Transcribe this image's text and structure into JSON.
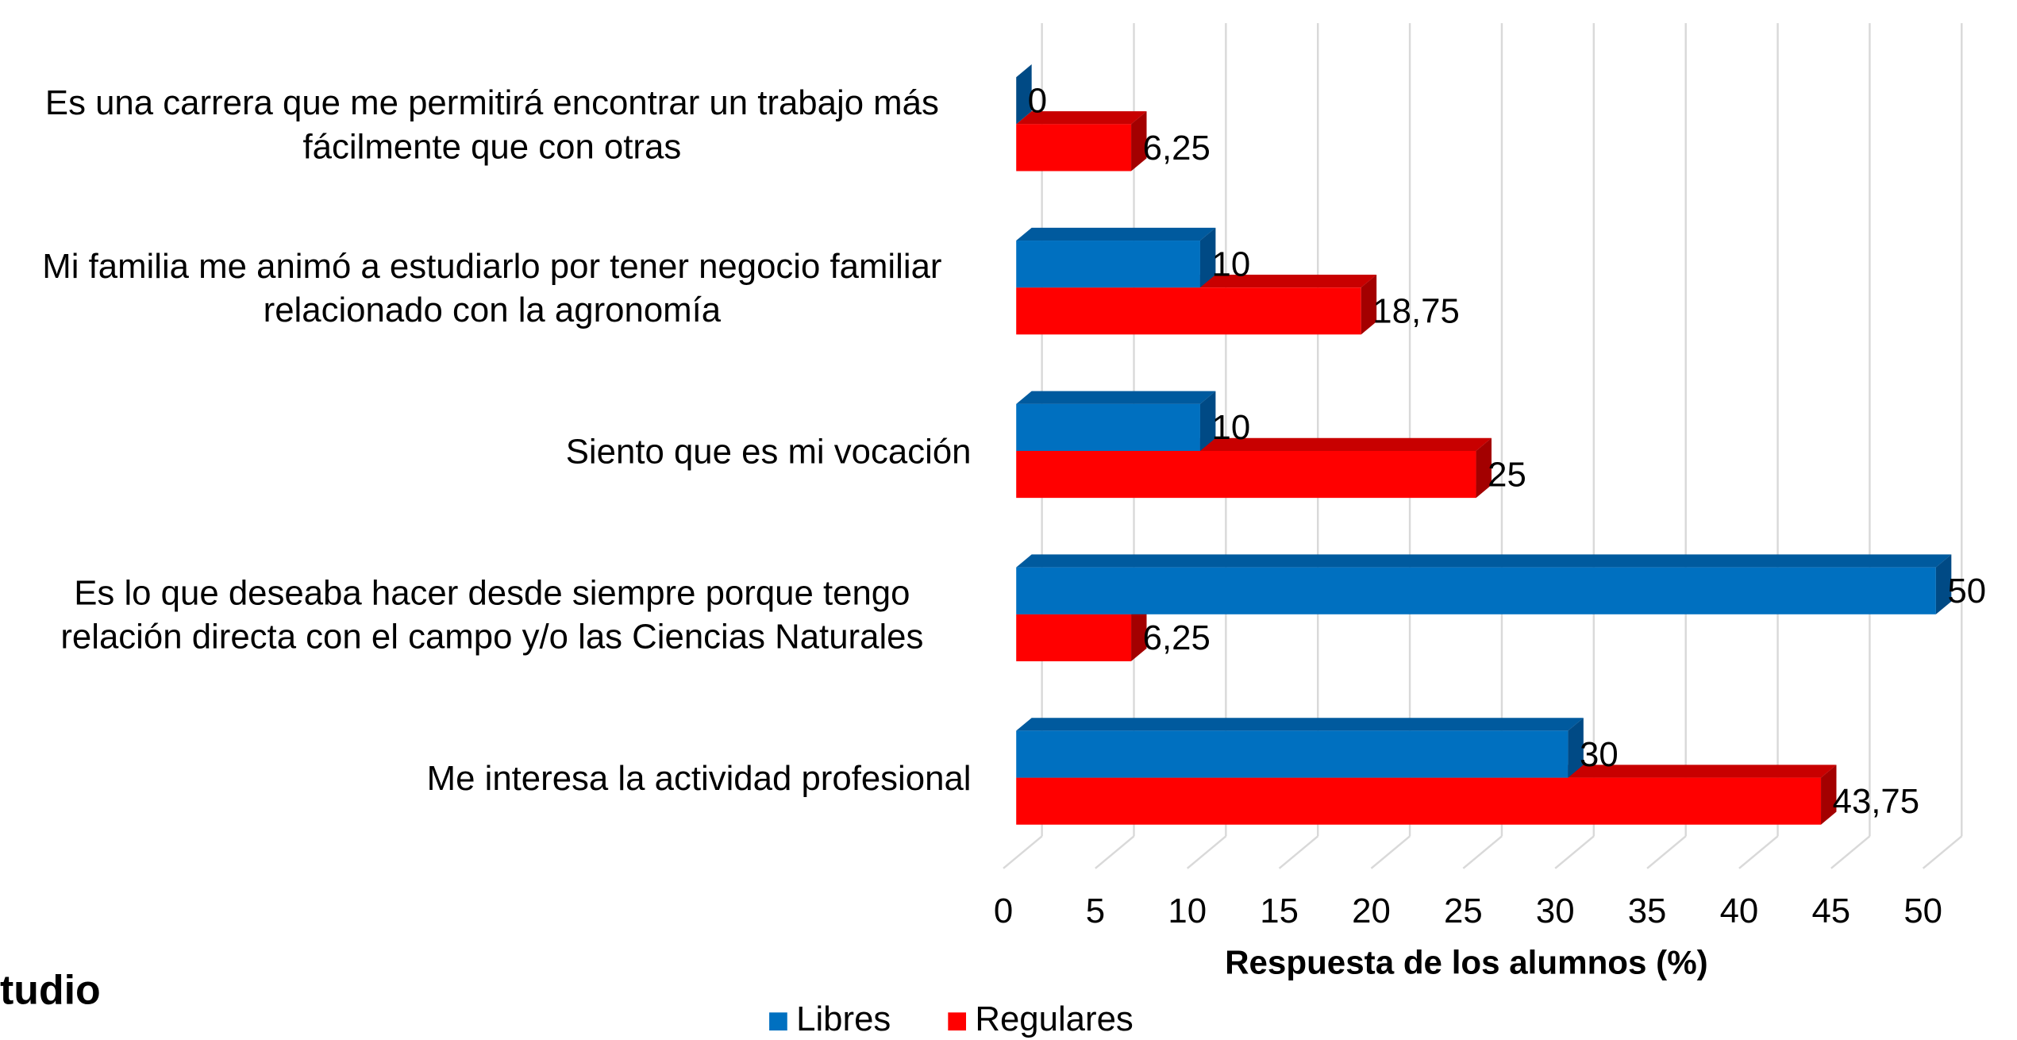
{
  "chart_data": {
    "type": "bar3d_horizontal",
    "annotation": "tudio",
    "xlabel": "Respuesta de los alumnos (%)",
    "categories": [
      "Es una carrera que me permitirá encontrar un trabajo más fácilmente que con otras",
      "Mi familia me animó a estudiarlo por tener negocio familiar relacionado con la agronomía",
      "Siento que es mi vocación",
      "Es lo que deseaba hacer desde siempre porque tengo relación directa con el campo y/o las Ciencias Naturales",
      "Me interesa la actividad profesional"
    ],
    "series": [
      {
        "name": "Libres",
        "color": "#0070c0",
        "top_color": "#005a9e",
        "side_color": "#004a85",
        "values": [
          0,
          10,
          10,
          50,
          30
        ]
      },
      {
        "name": "Regulares",
        "color": "#ff0000",
        "top_color": "#c80000",
        "side_color": "#a30000",
        "values": [
          6.25,
          18.75,
          25,
          6.25,
          43.75
        ],
        "value_labels": [
          "6,25",
          "18,75",
          "25",
          "6,25",
          "43,75"
        ]
      }
    ],
    "xlim": [
      0,
      50
    ],
    "xticks": [
      0,
      5,
      10,
      15,
      20,
      25,
      30,
      35,
      40,
      45,
      50
    ],
    "grid": true,
    "legend": "bottom"
  }
}
